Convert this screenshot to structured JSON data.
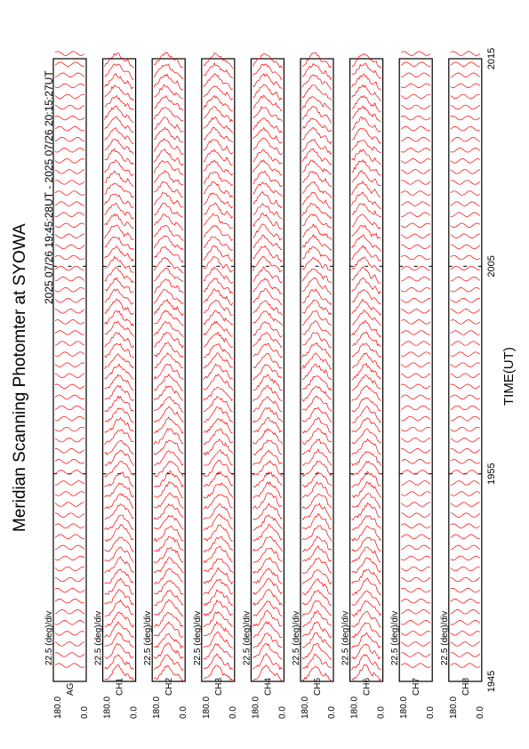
{
  "chart_data": {
    "type": "line",
    "title": "Meridian Scanning Photomter at SYOWA",
    "subtitle": "2025 07/26 19:45:28UT - 2025 07/26 20:15:27UT",
    "xlabel": "TIME(UT)",
    "x_ticks": [
      "1945",
      "1955",
      "2005",
      "2015"
    ],
    "xlim": [
      "19:45",
      "20:15"
    ],
    "line_color": "#ff0000",
    "channels": [
      {
        "name": "AG",
        "scale": "22.5 (deg)/div",
        "ymax": "180.0",
        "ymin": "0.0",
        "trace_kind": "flat"
      },
      {
        "name": "CH1",
        "scale": "22.5 (deg)/div",
        "ymax": "180.0",
        "ymin": "0.0",
        "trace_kind": "scan"
      },
      {
        "name": "CH2",
        "scale": "22.5 (deg)/div",
        "ymax": "180.0",
        "ymin": "0.0",
        "trace_kind": "scan"
      },
      {
        "name": "CH3",
        "scale": "22.5 (deg)/div",
        "ymax": "180.0",
        "ymin": "0.0",
        "trace_kind": "scan"
      },
      {
        "name": "CH4",
        "scale": "22.5 (deg)/div",
        "ymax": "180.0",
        "ymin": "0.0",
        "trace_kind": "scan"
      },
      {
        "name": "CH5",
        "scale": "22.5 (deg)/div",
        "ymax": "180.0",
        "ymin": "0.0",
        "trace_kind": "scan"
      },
      {
        "name": "CH6",
        "scale": "22.5 (deg)/div",
        "ymax": "180.0",
        "ymin": "0.0",
        "trace_kind": "scan"
      },
      {
        "name": "CH7",
        "scale": "22.5 (deg)/div",
        "ymax": "180.0",
        "ymin": "0.0",
        "trace_kind": "flat"
      },
      {
        "name": "CH8",
        "scale": "22.5 (deg)/div",
        "ymax": "180.0",
        "ymin": "0.0",
        "trace_kind": "flat"
      }
    ]
  }
}
